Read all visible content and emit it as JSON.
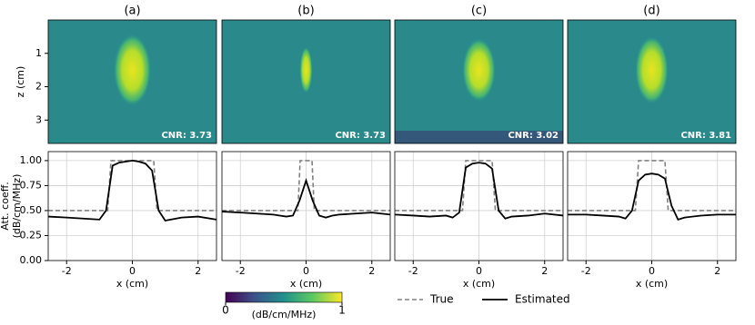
{
  "chart_data": [
    {
      "type": "image",
      "title": "(a)",
      "annotation": "CNR: 3.73",
      "ylabel": "z (cm)",
      "ylim": [
        3.7,
        0
      ],
      "yticks": [
        1,
        2,
        3
      ]
    },
    {
      "type": "image",
      "title": "(b)",
      "annotation": "CNR: 3.73"
    },
    {
      "type": "image",
      "title": "(c)",
      "annotation": "CNR: 3.02"
    },
    {
      "type": "image",
      "title": "(d)",
      "annotation": "CNR: 3.81"
    },
    {
      "type": "line",
      "xlabel": "x (cm)",
      "ylabel": [
        "Att. coeff.",
        "(dB/cm/MHz)"
      ],
      "xlim": [
        -2.56,
        2.56
      ],
      "ylim": [
        0,
        1.09
      ],
      "xticks": [
        -2,
        0,
        2
      ],
      "yticks": [
        {
          "value": 0,
          "label": "0.00"
        },
        {
          "value": 0.25,
          "label": "0.25"
        },
        {
          "value": 0.5,
          "label": "0.50"
        },
        {
          "value": 0.75,
          "label": "0.75"
        },
        {
          "value": 1,
          "label": "1.00"
        }
      ],
      "ytick_labels": true,
      "grid": true,
      "series": [
        {
          "name": "True",
          "color": "#808080",
          "dash": true,
          "x": [
            -2.56,
            -0.75,
            -0.65,
            0.65,
            0.75,
            2.56
          ],
          "values": [
            0.5,
            0.5,
            1,
            1,
            0.5,
            0.5
          ]
        },
        {
          "name": "Estimated",
          "color": "#000000",
          "dash": false,
          "x": [
            -2.56,
            -2,
            -1.5,
            -1,
            -0.8,
            -0.6,
            -0.4,
            -0.2,
            0,
            0.2,
            0.4,
            0.6,
            0.8,
            1,
            1.5,
            2,
            2.56
          ],
          "values": [
            0.44,
            0.43,
            0.42,
            0.41,
            0.5,
            0.95,
            0.98,
            0.99,
            1.0,
            0.99,
            0.97,
            0.9,
            0.5,
            0.4,
            0.43,
            0.44,
            0.41
          ]
        }
      ]
    },
    {
      "type": "line",
      "xlabel": "x (cm)",
      "xlim": [
        -2.56,
        2.56
      ],
      "ylim": [
        0,
        1.09
      ],
      "xticks": [
        -2,
        0,
        2
      ],
      "yticks": [
        0,
        0.25,
        0.5,
        0.75,
        1
      ],
      "ytick_labels": false,
      "grid": true,
      "series": [
        {
          "name": "True",
          "color": "#808080",
          "dash": true,
          "x": [
            -2.56,
            -0.25,
            -0.18,
            0.18,
            0.25,
            2.56
          ],
          "values": [
            0.5,
            0.5,
            1,
            1,
            0.5,
            0.5
          ]
        },
        {
          "name": "Estimated",
          "color": "#000000",
          "dash": false,
          "x": [
            -2.56,
            -2,
            -1.5,
            -1,
            -0.8,
            -0.6,
            -0.4,
            -0.2,
            0,
            0.2,
            0.4,
            0.6,
            0.8,
            1,
            1.5,
            2,
            2.56
          ],
          "values": [
            0.49,
            0.48,
            0.47,
            0.46,
            0.45,
            0.44,
            0.45,
            0.6,
            0.8,
            0.6,
            0.45,
            0.43,
            0.45,
            0.46,
            0.47,
            0.48,
            0.46
          ]
        }
      ]
    },
    {
      "type": "line",
      "xlabel": "x (cm)",
      "xlim": [
        -2.56,
        2.56
      ],
      "ylim": [
        0,
        1.09
      ],
      "xticks": [
        -2,
        0,
        2
      ],
      "yticks": [
        0,
        0.25,
        0.5,
        0.75,
        1
      ],
      "ytick_labels": false,
      "grid": true,
      "series": [
        {
          "name": "True",
          "color": "#808080",
          "dash": true,
          "x": [
            -2.56,
            -0.5,
            -0.4,
            0.4,
            0.5,
            2.56
          ],
          "values": [
            0.5,
            0.5,
            1,
            1,
            0.5,
            0.5
          ]
        },
        {
          "name": "Estimated",
          "color": "#000000",
          "dash": false,
          "x": [
            -2.56,
            -2,
            -1.5,
            -1,
            -0.8,
            -0.6,
            -0.4,
            -0.2,
            0,
            0.2,
            0.4,
            0.6,
            0.8,
            1,
            1.5,
            2,
            2.56
          ],
          "values": [
            0.46,
            0.45,
            0.44,
            0.45,
            0.43,
            0.48,
            0.93,
            0.97,
            0.98,
            0.97,
            0.92,
            0.5,
            0.42,
            0.44,
            0.45,
            0.47,
            0.45
          ]
        }
      ]
    },
    {
      "type": "line",
      "xlabel": "x (cm)",
      "xlim": [
        -2.56,
        2.56
      ],
      "ylim": [
        0,
        1.09
      ],
      "xticks": [
        -2,
        0,
        2
      ],
      "yticks": [
        0,
        0.25,
        0.5,
        0.75,
        1
      ],
      "ytick_labels": false,
      "grid": true,
      "series": [
        {
          "name": "True",
          "color": "#808080",
          "dash": true,
          "x": [
            -2.56,
            -0.5,
            -0.4,
            0.4,
            0.5,
            2.56
          ],
          "values": [
            0.5,
            0.5,
            1,
            1,
            0.5,
            0.5
          ]
        },
        {
          "name": "Estimated",
          "color": "#000000",
          "dash": false,
          "x": [
            -2.56,
            -2,
            -1.5,
            -1,
            -0.8,
            -0.6,
            -0.4,
            -0.2,
            0,
            0.2,
            0.4,
            0.6,
            0.8,
            1,
            1.5,
            2,
            2.56
          ],
          "values": [
            0.46,
            0.46,
            0.45,
            0.44,
            0.42,
            0.5,
            0.8,
            0.86,
            0.87,
            0.86,
            0.82,
            0.55,
            0.41,
            0.43,
            0.45,
            0.46,
            0.46
          ]
        }
      ]
    }
  ],
  "colorbar": {
    "label": "(dB/cm/MHz)",
    "lim": [
      0,
      1
    ],
    "ticks": [
      0,
      1
    ]
  }
}
